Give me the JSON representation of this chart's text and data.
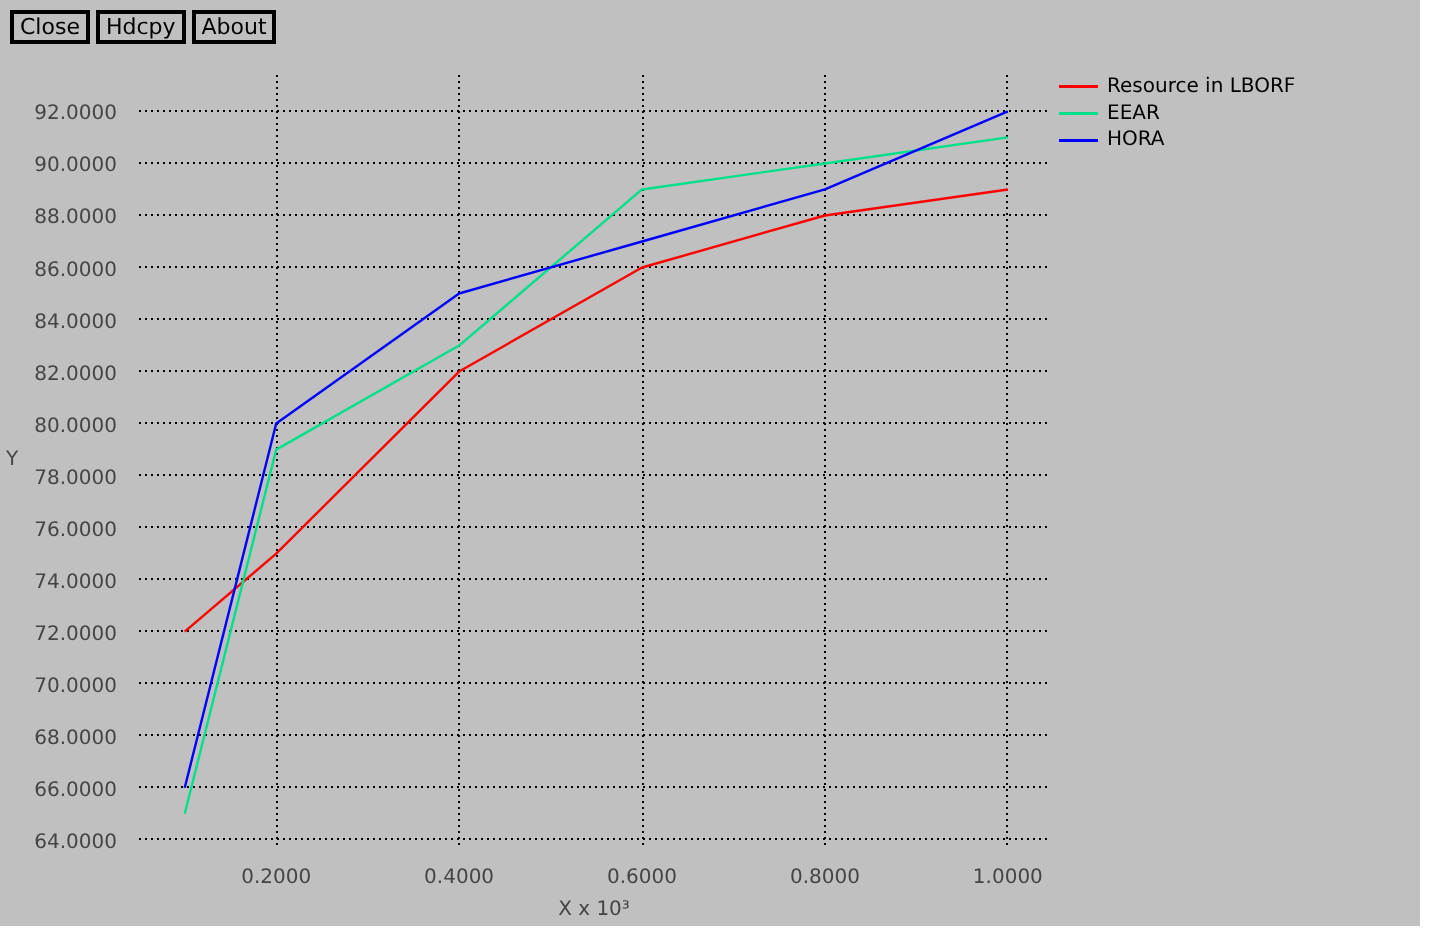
{
  "chart_data": {
    "type": "line",
    "x": [
      0.1,
      0.2,
      0.4,
      0.6,
      0.8,
      1.0
    ],
    "series": [
      {
        "name": "Resource in LBORF",
        "color": "#ff0000",
        "values": [
          72,
          75,
          82,
          86,
          88,
          89
        ]
      },
      {
        "name": "EEAR",
        "color": "#00e08a",
        "values": [
          65,
          79,
          83,
          89,
          90,
          91
        ]
      },
      {
        "name": "HORA",
        "color": "#0000ff",
        "values": [
          66,
          80,
          85,
          87,
          89,
          92
        ]
      }
    ],
    "xlabel": "X x 10³",
    "ylabel": "Y",
    "xlim": [
      0.05,
      1.045
    ],
    "ylim": [
      63.8,
      93.4
    ],
    "xticks": [
      {
        "value": 0.2,
        "label": "0.2000"
      },
      {
        "value": 0.4,
        "label": "0.4000"
      },
      {
        "value": 0.6,
        "label": "0.6000"
      },
      {
        "value": 0.8,
        "label": "0.8000"
      },
      {
        "value": 1.0,
        "label": "1.0000"
      }
    ],
    "yticks": [
      {
        "value": 64,
        "label": "64.0000"
      },
      {
        "value": 66,
        "label": "66.0000"
      },
      {
        "value": 68,
        "label": "68.0000"
      },
      {
        "value": 70,
        "label": "70.0000"
      },
      {
        "value": 72,
        "label": "72.0000"
      },
      {
        "value": 74,
        "label": "74.0000"
      },
      {
        "value": 76,
        "label": "76.0000"
      },
      {
        "value": 78,
        "label": "78.0000"
      },
      {
        "value": 80,
        "label": "80.0000"
      },
      {
        "value": 82,
        "label": "82.0000"
      },
      {
        "value": 84,
        "label": "84.0000"
      },
      {
        "value": 86,
        "label": "86.0000"
      },
      {
        "value": 88,
        "label": "88.0000"
      },
      {
        "value": 90,
        "label": "90.0000"
      },
      {
        "value": 92,
        "label": "92.0000"
      }
    ],
    "grid": true,
    "legend": "top right",
    "line_style": "solid",
    "annotations": [
      "Close",
      "Hdcpy",
      "About"
    ]
  }
}
